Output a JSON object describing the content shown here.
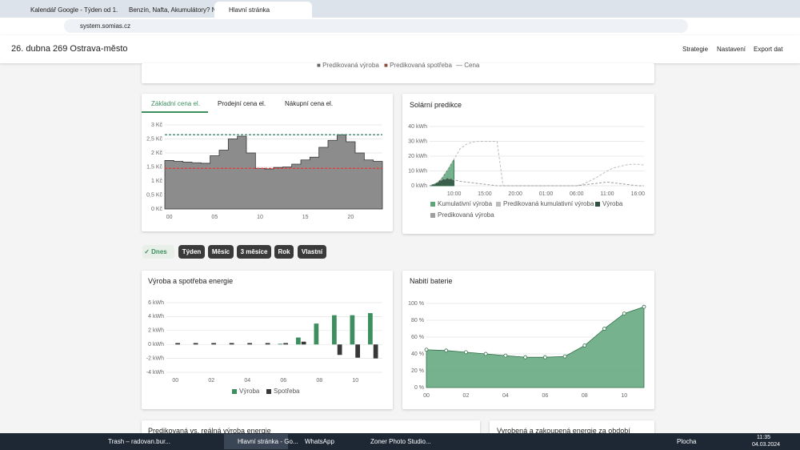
{
  "browser": {
    "tabs": [
      "Kalendář Google - Týden od 1.",
      "Benzín, Nafta, Akumulátory? Ne",
      "Hlavní stránka"
    ],
    "url": "system.somias.cz"
  },
  "app": {
    "title": "26. dubna 269 Ostrava-město",
    "nav": [
      "Strategie",
      "Nastavení",
      "Export dat"
    ]
  },
  "top_card": {
    "legend": [
      "Predikovaná výroba",
      "Predikovaná spotřeba",
      "Cena"
    ]
  },
  "range_buttons": [
    "Dnes",
    "Týden",
    "Měsíc",
    "3 měsíce",
    "Rok",
    "Vlastní"
  ],
  "chart_data": [
    {
      "type": "step",
      "tabs": [
        "Základní cena el.",
        "Prodejní cena el.",
        "Nákupní cena el."
      ],
      "categories": [
        "00",
        null,
        null,
        null,
        null,
        "05",
        null,
        null,
        null,
        null,
        "10",
        null,
        null,
        null,
        null,
        "15",
        null,
        null,
        null,
        null,
        "20",
        null,
        null,
        null
      ],
      "values": [
        1.73,
        1.7,
        1.67,
        1.65,
        1.63,
        1.9,
        2.1,
        2.5,
        2.6,
        2.0,
        1.45,
        1.43,
        1.48,
        1.5,
        1.6,
        1.75,
        1.85,
        2.2,
        2.45,
        2.65,
        2.4,
        2.0,
        1.75,
        1.7
      ],
      "color": "#8c8c8c",
      "ylim": [
        0,
        3
      ],
      "yticks": [
        {
          "value": 0,
          "label": "0 Kč"
        },
        {
          "value": 0.5,
          "label": "0,5 Kč"
        },
        {
          "value": 1,
          "label": "1 Kč"
        },
        {
          "value": 1.5,
          "label": "1,5 Kč"
        },
        {
          "value": 2,
          "label": "2 Kč"
        },
        {
          "value": 2.5,
          "label": "2,5 Kč"
        },
        {
          "value": 3,
          "label": "3 Kč"
        }
      ],
      "grid": true,
      "hlines": [
        {
          "value": 2.65,
          "color": "#2e7d5b"
        },
        {
          "value": 1.45,
          "color": "#e53935"
        }
      ]
    },
    {
      "type": "area",
      "title": "Solární predikce",
      "categories": [
        null,
        null,
        null,
        null,
        "10:00",
        null,
        null,
        null,
        null,
        "15:00",
        null,
        null,
        null,
        null,
        "20:00",
        null,
        null,
        null,
        null,
        "01:00",
        null,
        null,
        null,
        null,
        "06:00",
        null,
        null,
        null,
        null,
        "11:00",
        null,
        null,
        null,
        null,
        "16:00",
        null
      ],
      "ylim": [
        0,
        40
      ],
      "yticks": [
        {
          "value": 0,
          "label": "0 kWh"
        },
        {
          "value": 10,
          "label": "10 kWh"
        },
        {
          "value": 20,
          "label": "20 kWh"
        },
        {
          "value": 30,
          "label": "30 kWh"
        },
        {
          "value": 40,
          "label": "40 kWh"
        }
      ],
      "grid": true,
      "series": [
        {
          "name": "Kumulativní výroba",
          "color": "#5fa57a",
          "style": "area",
          "values": [
            0,
            1,
            5,
            11,
            18,
            null,
            null,
            null,
            null,
            null,
            null,
            null,
            null,
            null,
            null,
            null,
            null,
            null,
            null,
            null,
            null,
            null,
            null,
            null,
            null,
            null,
            null,
            null,
            null,
            null,
            null,
            null,
            null,
            null,
            null,
            null
          ]
        },
        {
          "name": "Predikovaná kumulativní výroba",
          "color": "#bdbdbd",
          "style": "dashed",
          "values": [
            0,
            1,
            5,
            11,
            18,
            25,
            28,
            29.5,
            30,
            30,
            30,
            30,
            0,
            0,
            0,
            0,
            0,
            0,
            0,
            0,
            0,
            0,
            0,
            0,
            0,
            1,
            3,
            5,
            7.5,
            10,
            12,
            13,
            14,
            14.5,
            14.5,
            14
          ]
        },
        {
          "name": "Výroba",
          "color": "#2f4f3f",
          "style": "area",
          "values": [
            0,
            1.5,
            4,
            5,
            4,
            null,
            null,
            null,
            null,
            null,
            null,
            null,
            null,
            null,
            null,
            null,
            null,
            null,
            null,
            null,
            null,
            null,
            null,
            null,
            null,
            null,
            null,
            null,
            null,
            null,
            null,
            null,
            null,
            null,
            null,
            null
          ]
        },
        {
          "name": "Predikovaná výroba",
          "color": "#9e9e9e",
          "style": "dashed",
          "values": [
            0,
            1.5,
            4,
            5,
            4,
            3,
            2.5,
            2,
            1.5,
            1,
            0.5,
            0,
            0,
            0,
            0,
            0,
            0,
            0,
            0,
            0,
            0,
            0,
            0,
            0,
            0,
            0.5,
            1,
            1.5,
            2,
            2.5,
            2,
            1.5,
            1,
            0.5,
            0,
            0
          ]
        }
      ]
    },
    {
      "type": "bar",
      "title": "Výroba a spotřeba energie",
      "categories": [
        "00",
        null,
        "02",
        null,
        "04",
        null,
        "06",
        null,
        "08",
        null,
        "10",
        null
      ],
      "ylim": [
        -4,
        6
      ],
      "yticks": [
        {
          "value": -4,
          "label": "-4 kWh"
        },
        {
          "value": -2,
          "label": "-2 kWh"
        },
        {
          "value": 0,
          "label": "0 kWh"
        },
        {
          "value": 2,
          "label": "2 kWh"
        },
        {
          "value": 4,
          "label": "4 kWh"
        },
        {
          "value": 6,
          "label": "6 kWh"
        }
      ],
      "grid": true,
      "series": [
        {
          "name": "Výroba",
          "color": "#3d8f5f",
          "values": [
            0,
            0,
            0,
            0,
            0,
            0,
            0.1,
            1,
            3,
            4.2,
            4.2,
            4.5
          ]
        },
        {
          "name": "Spotřeba",
          "color": "#383838",
          "values": [
            0.2,
            0.2,
            0.2,
            0.2,
            0.2,
            0.2,
            0.2,
            0.4,
            0,
            -1.5,
            -1.9,
            -2
          ]
        }
      ]
    },
    {
      "type": "area",
      "title": "Nabití baterie",
      "categories": [
        "00",
        null,
        "02",
        null,
        "04",
        null,
        "06",
        null,
        "08",
        null,
        "10",
        null
      ],
      "ylim": [
        0,
        100
      ],
      "yticks": [
        {
          "value": 0,
          "label": "0 %"
        },
        {
          "value": 20,
          "label": "20 %"
        },
        {
          "value": 40,
          "label": "40 %"
        },
        {
          "value": 60,
          "label": "60 %"
        },
        {
          "value": 80,
          "label": "80 %"
        },
        {
          "value": 100,
          "label": "100 %"
        }
      ],
      "grid": true,
      "markers": true,
      "values": [
        45,
        44,
        42,
        40,
        38,
        36,
        36,
        37,
        50,
        70,
        88,
        96
      ],
      "color": "#5fa57a"
    }
  ],
  "bottom_cards": [
    "Predikovaná vs. reálná výroba energie",
    "Vyrobená a zakoupená energie za období"
  ],
  "taskbar": {
    "apps": [
      "Trash – radovan.bur...",
      "Hlavní stránka - Go...",
      "WhatsApp",
      "Zoner Photo Studio..."
    ],
    "desktop": "Plocha",
    "time": "11:35",
    "date": "04.03.2024"
  }
}
